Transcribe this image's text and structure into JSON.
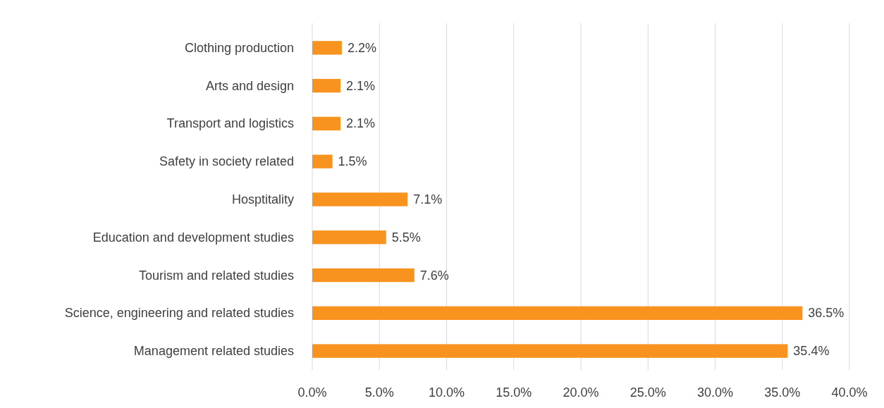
{
  "chart_data": {
    "type": "bar",
    "orientation": "horizontal",
    "categories": [
      "Clothing production",
      "Arts and design",
      "Transport and logistics",
      "Safety in society related",
      "Hosptitality",
      "Education and development studies",
      "Tourism and related studies",
      "Science, engineering and related studies",
      "Management related studies"
    ],
    "values": [
      2.2,
      2.1,
      2.1,
      1.5,
      7.1,
      5.5,
      7.6,
      36.5,
      35.4
    ],
    "value_labels": [
      "2.2%",
      "2.1%",
      "2.1%",
      "1.5%",
      "7.1%",
      "5.5%",
      "7.6%",
      "36.5%",
      "35.4%"
    ],
    "color": "#f7931e",
    "xlim": [
      0,
      40
    ],
    "xticks": [
      {
        "value": 0,
        "label": "0.0%"
      },
      {
        "value": 5,
        "label": "5.0%"
      },
      {
        "value": 10,
        "label": "10.0%"
      },
      {
        "value": 15,
        "label": "15.0%"
      },
      {
        "value": 20,
        "label": "20.0%"
      },
      {
        "value": 25,
        "label": "25.0%"
      },
      {
        "value": 30,
        "label": "30.0%"
      },
      {
        "value": 35,
        "label": "35.0%"
      },
      {
        "value": 40,
        "label": "40.0%"
      }
    ],
    "grid": "x",
    "legend": false
  }
}
